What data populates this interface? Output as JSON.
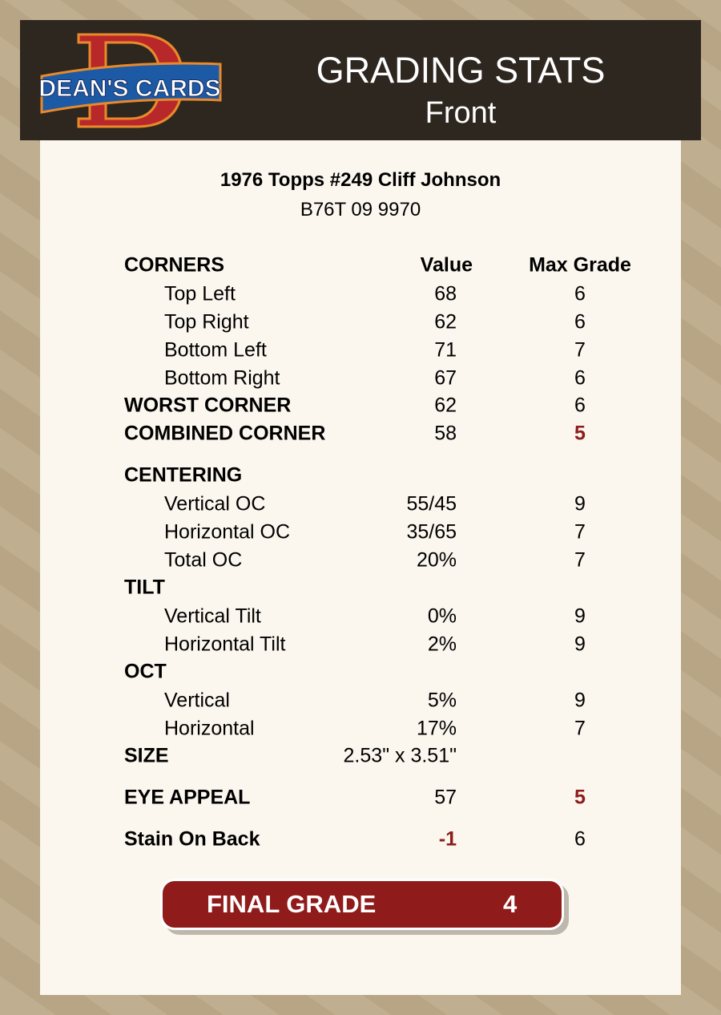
{
  "header": {
    "logo_text": "DEAN'S CARDS",
    "title": "GRADING STATS",
    "subtitle": "Front"
  },
  "card": {
    "name": "1976 Topps #249 Cliff Johnson",
    "id": "B76T 09 9970"
  },
  "columns": {
    "value": "Value",
    "max": "Max Grade"
  },
  "rows": [
    {
      "label": "CORNERS",
      "bold": true,
      "value": "",
      "max": ""
    },
    {
      "label": "Top Left",
      "value": "68",
      "max": "6"
    },
    {
      "label": "Top Right",
      "value": "62",
      "max": "6"
    },
    {
      "label": "Bottom Left",
      "value": "71",
      "max": "7"
    },
    {
      "label": "Bottom Right",
      "value": "67",
      "max": "6"
    },
    {
      "label": "WORST CORNER",
      "bold": true,
      "value": "62",
      "max": "6"
    },
    {
      "label": "COMBINED CORNER",
      "bold": true,
      "value": "58",
      "max": "5",
      "max_red": true
    },
    {
      "label": "CENTERING",
      "bold": true,
      "value": "",
      "max": ""
    },
    {
      "label": "Vertical OC",
      "value": "55/45",
      "max": "9"
    },
    {
      "label": "Horizontal OC",
      "value": "35/65",
      "max": "7"
    },
    {
      "label": "Total OC",
      "value": "20%",
      "max": "7"
    },
    {
      "label": "TILT",
      "bold": true,
      "value": "",
      "max": ""
    },
    {
      "label": "Vertical Tilt",
      "value": "0%",
      "max": "9"
    },
    {
      "label": "Horizontal Tilt",
      "value": "2%",
      "max": "9"
    },
    {
      "label": "OCT",
      "bold": true,
      "value": "",
      "max": ""
    },
    {
      "label": "Vertical",
      "value": "5%",
      "max": "9"
    },
    {
      "label": "Horizontal",
      "value": "17%",
      "max": "7"
    },
    {
      "label": "SIZE",
      "bold": true,
      "value": "2.53\" x 3.51\"",
      "max": ""
    },
    {
      "label": "EYE APPEAL",
      "bold": true,
      "value": "57",
      "max": "5",
      "max_red": true
    },
    {
      "label": "Stain On Back",
      "bold": true,
      "value": "-1",
      "value_red": true,
      "max": "6"
    }
  ],
  "final": {
    "label": "FINAL GRADE",
    "value": "4"
  },
  "colors": {
    "header_bg": "#2e2720",
    "accent_red": "#901b1b",
    "panel_bg": "#fbf7ee"
  }
}
